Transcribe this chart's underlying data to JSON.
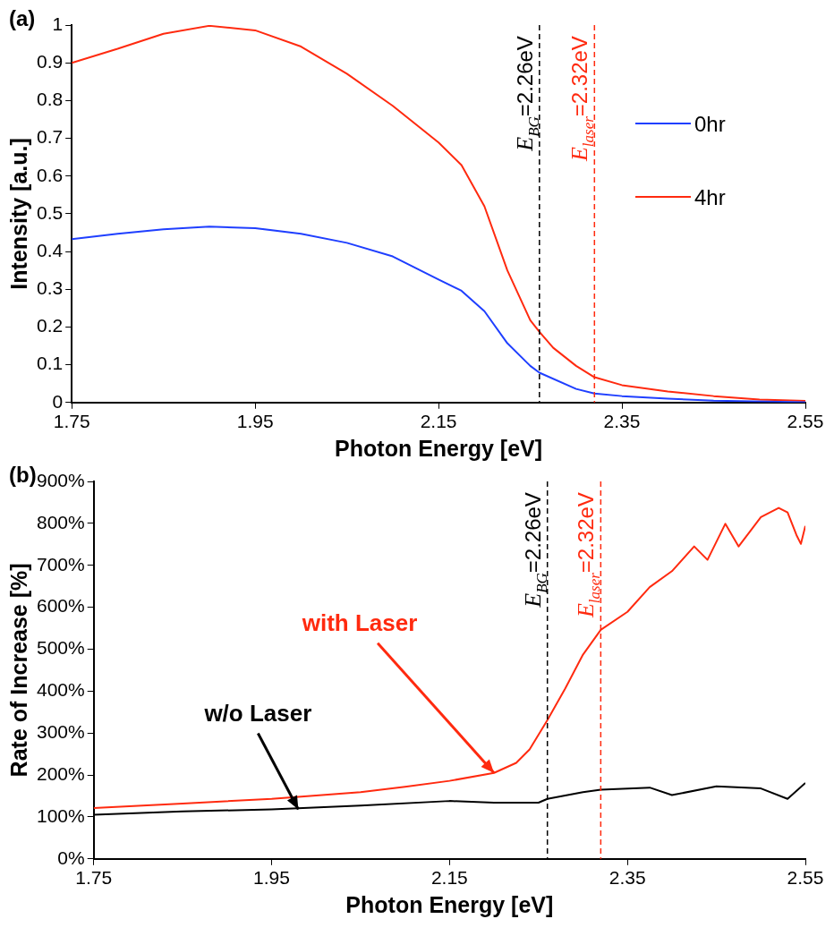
{
  "chart_data": [
    {
      "type": "line",
      "title": "(a)",
      "xlabel": "Photon Energy [eV]",
      "ylabel": "Intensity [a.u.]",
      "xlim": [
        1.75,
        2.55
      ],
      "xticks": [
        1.75,
        1.95,
        2.15,
        2.35,
        2.55
      ],
      "ylim": [
        0,
        1
      ],
      "yticks": [
        0,
        0.1,
        0.2,
        0.3,
        0.4,
        0.5,
        0.6,
        0.7,
        0.8,
        0.9,
        1
      ],
      "grid": false,
      "legend": "top right",
      "marker": "none",
      "line_style": "solid",
      "series": [
        {
          "name": "0hr",
          "color": "#1f3fff",
          "x": [
            1.75,
            1.8,
            1.85,
            1.9,
            1.95,
            2.0,
            2.05,
            2.1,
            2.15,
            2.175,
            2.2,
            2.225,
            2.25,
            2.26,
            2.3,
            2.32,
            2.35,
            2.4,
            2.45,
            2.55
          ],
          "values": [
            0.433,
            0.447,
            0.459,
            0.466,
            0.462,
            0.447,
            0.423,
            0.387,
            0.326,
            0.296,
            0.242,
            0.157,
            0.097,
            0.079,
            0.036,
            0.024,
            0.017,
            0.01,
            0.005,
            0.001
          ]
        },
        {
          "name": "4hr",
          "color": "#ff2a0f",
          "x": [
            1.75,
            1.8,
            1.85,
            1.9,
            1.95,
            2.0,
            2.05,
            2.1,
            2.15,
            2.175,
            2.2,
            2.225,
            2.25,
            2.26,
            2.275,
            2.3,
            2.32,
            2.35,
            2.4,
            2.45,
            2.5,
            2.55
          ],
          "values": [
            0.9,
            0.937,
            0.977,
            0.998,
            0.986,
            0.943,
            0.871,
            0.786,
            0.689,
            0.629,
            0.52,
            0.35,
            0.218,
            0.187,
            0.145,
            0.097,
            0.067,
            0.046,
            0.029,
            0.017,
            0.008,
            0.004
          ]
        }
      ],
      "ref_lines": [
        {
          "axis": "x",
          "value": 2.26,
          "label": "E$_{BG}$=2.26eV",
          "color": "#000000",
          "line_style": "dashed"
        },
        {
          "axis": "x",
          "value": 2.32,
          "label": "E$_{laser}$=2.32eV",
          "color": "#ff2a0f",
          "line_style": "dashed"
        }
      ]
    },
    {
      "type": "line",
      "title": "(b)",
      "xlabel": "Photon Energy [eV]",
      "ylabel": "Rate of Increase [%]",
      "xlim": [
        1.75,
        2.55
      ],
      "xticks": [
        1.75,
        1.95,
        2.15,
        2.35,
        2.55
      ],
      "ylim": [
        0,
        900
      ],
      "yticks": [
        {
          "value": 0,
          "label": "0%"
        },
        {
          "value": 100,
          "label": "100%"
        },
        {
          "value": 200,
          "label": "200%"
        },
        {
          "value": 300,
          "label": "300%"
        },
        {
          "value": 400,
          "label": "400%"
        },
        {
          "value": 500,
          "label": "500%"
        },
        {
          "value": 600,
          "label": "600%"
        },
        {
          "value": 700,
          "label": "700%"
        },
        {
          "value": 800,
          "label": "800%"
        },
        {
          "value": 900,
          "label": "900%"
        }
      ],
      "grid": false,
      "legend": false,
      "marker": "none",
      "line_style": "solid",
      "series": [
        {
          "color": "#ff2a0f",
          "x": [
            1.75,
            1.85,
            1.95,
            2.05,
            2.1,
            2.15,
            2.2,
            2.225,
            2.24,
            2.26,
            2.28,
            2.3,
            2.32,
            2.35,
            2.375,
            2.4,
            2.425,
            2.44,
            2.46,
            2.475,
            2.5,
            2.52,
            2.53,
            2.54,
            2.545,
            2.55
          ],
          "values": [
            121,
            132,
            143,
            159,
            172,
            186,
            205,
            229,
            261,
            331,
            406,
            487,
            546,
            589,
            648,
            686,
            745,
            713,
            799,
            745,
            815,
            837,
            826,
            772,
            751,
            794
          ]
        },
        {
          "color": "#000000",
          "x": [
            1.75,
            1.85,
            1.95,
            2.05,
            2.15,
            2.2,
            2.25,
            2.26,
            2.3,
            2.32,
            2.375,
            2.4,
            2.45,
            2.5,
            2.53,
            2.55
          ],
          "values": [
            105,
            113,
            118,
            127,
            138,
            134,
            134,
            143,
            159,
            165,
            170,
            152,
            173,
            168,
            143,
            181
          ]
        }
      ],
      "ref_lines": [
        {
          "axis": "x",
          "value": 2.26,
          "label": "E$_{BG}$=2.26eV",
          "color": "#000000",
          "line_style": "dashed"
        },
        {
          "axis": "x",
          "value": 2.32,
          "label": "E$_{laser}$=2.32eV",
          "color": "#ff2a0f",
          "line_style": "dashed"
        }
      ],
      "annotations": [
        {
          "text": "with Laser",
          "x": 2.2,
          "y": 205
        },
        {
          "text": "w/o Laser",
          "x": 1.98,
          "y": 118
        }
      ]
    }
  ]
}
